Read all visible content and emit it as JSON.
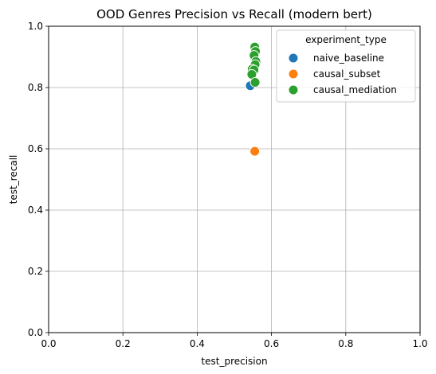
{
  "chart_data": {
    "type": "scatter",
    "title": "OOD Genres Precision vs Recall (modern bert)",
    "xlabel": "test_precision",
    "ylabel": "test_recall",
    "xlim": [
      0.0,
      1.0
    ],
    "ylim": [
      0.0,
      1.0
    ],
    "xticks": [
      "0.0",
      "0.2",
      "0.4",
      "0.6",
      "0.8",
      "1.0"
    ],
    "yticks": [
      "0.0",
      "0.2",
      "0.4",
      "0.6",
      "0.8",
      "1.0"
    ],
    "grid": true,
    "legend": {
      "title": "experiment_type",
      "placement": "top-right"
    },
    "series": [
      {
        "name": "naive_baseline",
        "color": "#1f77b4",
        "points": [
          {
            "x": 0.543,
            "y": 0.806
          },
          {
            "x": 0.555,
            "y": 0.875
          },
          {
            "x": 0.553,
            "y": 0.9
          }
        ]
      },
      {
        "name": "causal_subset",
        "color": "#ff7f0e",
        "points": [
          {
            "x": 0.555,
            "y": 0.592
          }
        ]
      },
      {
        "name": "causal_mediation",
        "color": "#2ca02c",
        "points": [
          {
            "x": 0.555,
            "y": 0.932
          },
          {
            "x": 0.557,
            "y": 0.918
          },
          {
            "x": 0.553,
            "y": 0.905
          },
          {
            "x": 0.558,
            "y": 0.885
          },
          {
            "x": 0.556,
            "y": 0.875
          },
          {
            "x": 0.548,
            "y": 0.86
          },
          {
            "x": 0.553,
            "y": 0.857
          },
          {
            "x": 0.547,
            "y": 0.843
          },
          {
            "x": 0.556,
            "y": 0.817
          }
        ]
      }
    ]
  }
}
